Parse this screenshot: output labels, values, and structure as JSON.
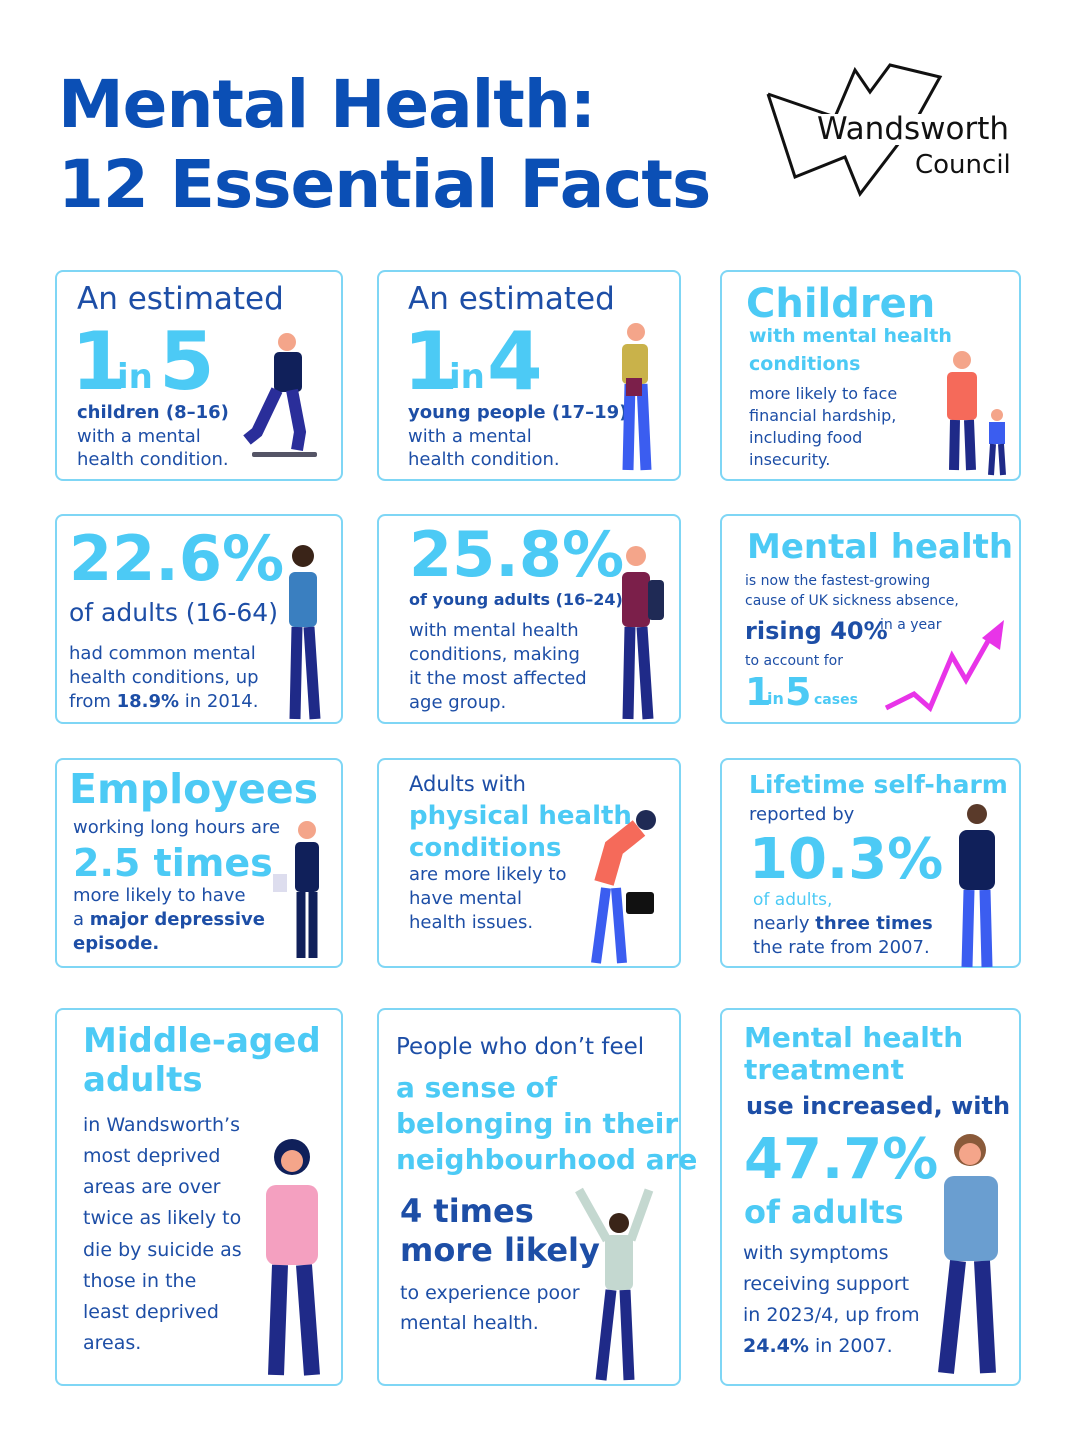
{
  "header": {
    "title_line1": "Mental Health:",
    "title_line2": "12 Essential Facts",
    "logo_name": "Wandsworth",
    "logo_sub": "Council"
  },
  "colors": {
    "title": "#0b4fb5",
    "accent": "#4ccaf5",
    "text": "#1d4ea6",
    "arrow": "#e834e8"
  },
  "cards": [
    {
      "l1": "An estimated",
      "n1": "1",
      "in": "in",
      "n2": "5",
      "s1": "children (8–16)",
      "s2": "with a mental",
      "s3": "health condition."
    },
    {
      "l1": "An estimated",
      "n1": "1",
      "in": "in",
      "n2": "4",
      "s1": "young people (17–19)",
      "s2": "with a mental",
      "s3": "health condition."
    },
    {
      "h": "Children",
      "h2": "with mental health",
      "h3": "conditions",
      "s1": "more likely to face",
      "s2": "financial hardship,",
      "s3": "including food",
      "s4": "insecurity."
    },
    {
      "big": "22.6%",
      "sub": "of adults (16-64)",
      "s1": "had common mental",
      "s2": "health conditions, up",
      "s3a": "from ",
      "s3b": "18.9%",
      "s3c": " in 2014."
    },
    {
      "big": "25.8%",
      "sub": "of young adults (16–24)",
      "s1": "with mental health",
      "s2": "conditions, making",
      "s3": "it the most affected",
      "s4": "age group."
    },
    {
      "h": "Mental health",
      "s1": "is now the fastest-growing",
      "s2": "cause of UK sickness absence,",
      "r1": "rising 40%",
      "r2": "in a year",
      "s3": "to account for",
      "n1": "1",
      "in": "in",
      "n2": "5",
      "cases": "cases"
    },
    {
      "h": "Employees",
      "s1": "working long hours are",
      "big": "2.5 times",
      "s2": "more likely to have",
      "s3a": "a ",
      "s3b": "major depressive",
      "s4": "episode."
    },
    {
      "s0": "Adults with",
      "h1": "physical health",
      "h2": "conditions",
      "s1": "are more likely to",
      "s2": "have mental",
      "s3": "health issues."
    },
    {
      "h": "Lifetime self-harm",
      "s0": "reported by",
      "big": "10.3%",
      "sub": "of adults,",
      "s1a": "nearly ",
      "s1b": "three times",
      "s2": "the rate from 2007."
    },
    {
      "h1": "Middle-aged",
      "h2": "adults",
      "lines": [
        "in Wandsworth’s",
        "most deprived",
        "areas are over",
        "twice as likely to",
        "die by suicide as",
        "those in the",
        "least deprived",
        "areas."
      ]
    },
    {
      "s0": "People who don’t feel",
      "h1": "a sense of",
      "h2": "belonging in their",
      "h3": "neighbourhood are",
      "b1": "4 times",
      "b2": "more likely",
      "s1": "to experience poor",
      "s2": "mental health."
    },
    {
      "h1": "Mental health",
      "h2": "treatment",
      "s0": "use increased, with",
      "big": "47.7%",
      "sub": "of adults",
      "s1": "with symptoms",
      "s2": "receiving support",
      "s3": "in 2023/4, up from",
      "s4a": "24.4%",
      "s4b": " in 2007."
    }
  ]
}
